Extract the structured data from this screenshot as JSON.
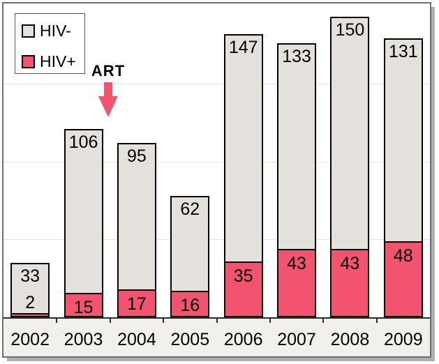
{
  "chart_data": {
    "type": "bar",
    "stacked": true,
    "title": "",
    "xlabel": "",
    "ylabel": "",
    "categories": [
      "2002",
      "2003",
      "2004",
      "2005",
      "2006",
      "2007",
      "2008",
      "2009"
    ],
    "series": [
      {
        "name": "HIV-",
        "color": "#e4e0db",
        "values": [
          33,
          106,
          95,
          62,
          147,
          133,
          150,
          131
        ]
      },
      {
        "name": "HIV+",
        "color": "#f2536f",
        "values": [
          2,
          15,
          17,
          16,
          35,
          43,
          43,
          48
        ]
      }
    ],
    "totals": [
      35,
      121,
      112,
      78,
      182,
      176,
      193,
      179
    ],
    "annotation": {
      "label": "ART",
      "arrow": "down",
      "color": "#f2536f",
      "points_between": [
        "2003",
        "2004"
      ]
    },
    "legend_position": "top-left",
    "ylim": [
      0,
      203
    ],
    "y_axis_labels_visible": false,
    "gridlines": [
      50,
      100,
      150
    ],
    "gridline_color": "#e4e2df",
    "bar_border_color": "#000000",
    "axis_band_color": "#f2f0ed",
    "frame_color": "#6e6e6e"
  }
}
